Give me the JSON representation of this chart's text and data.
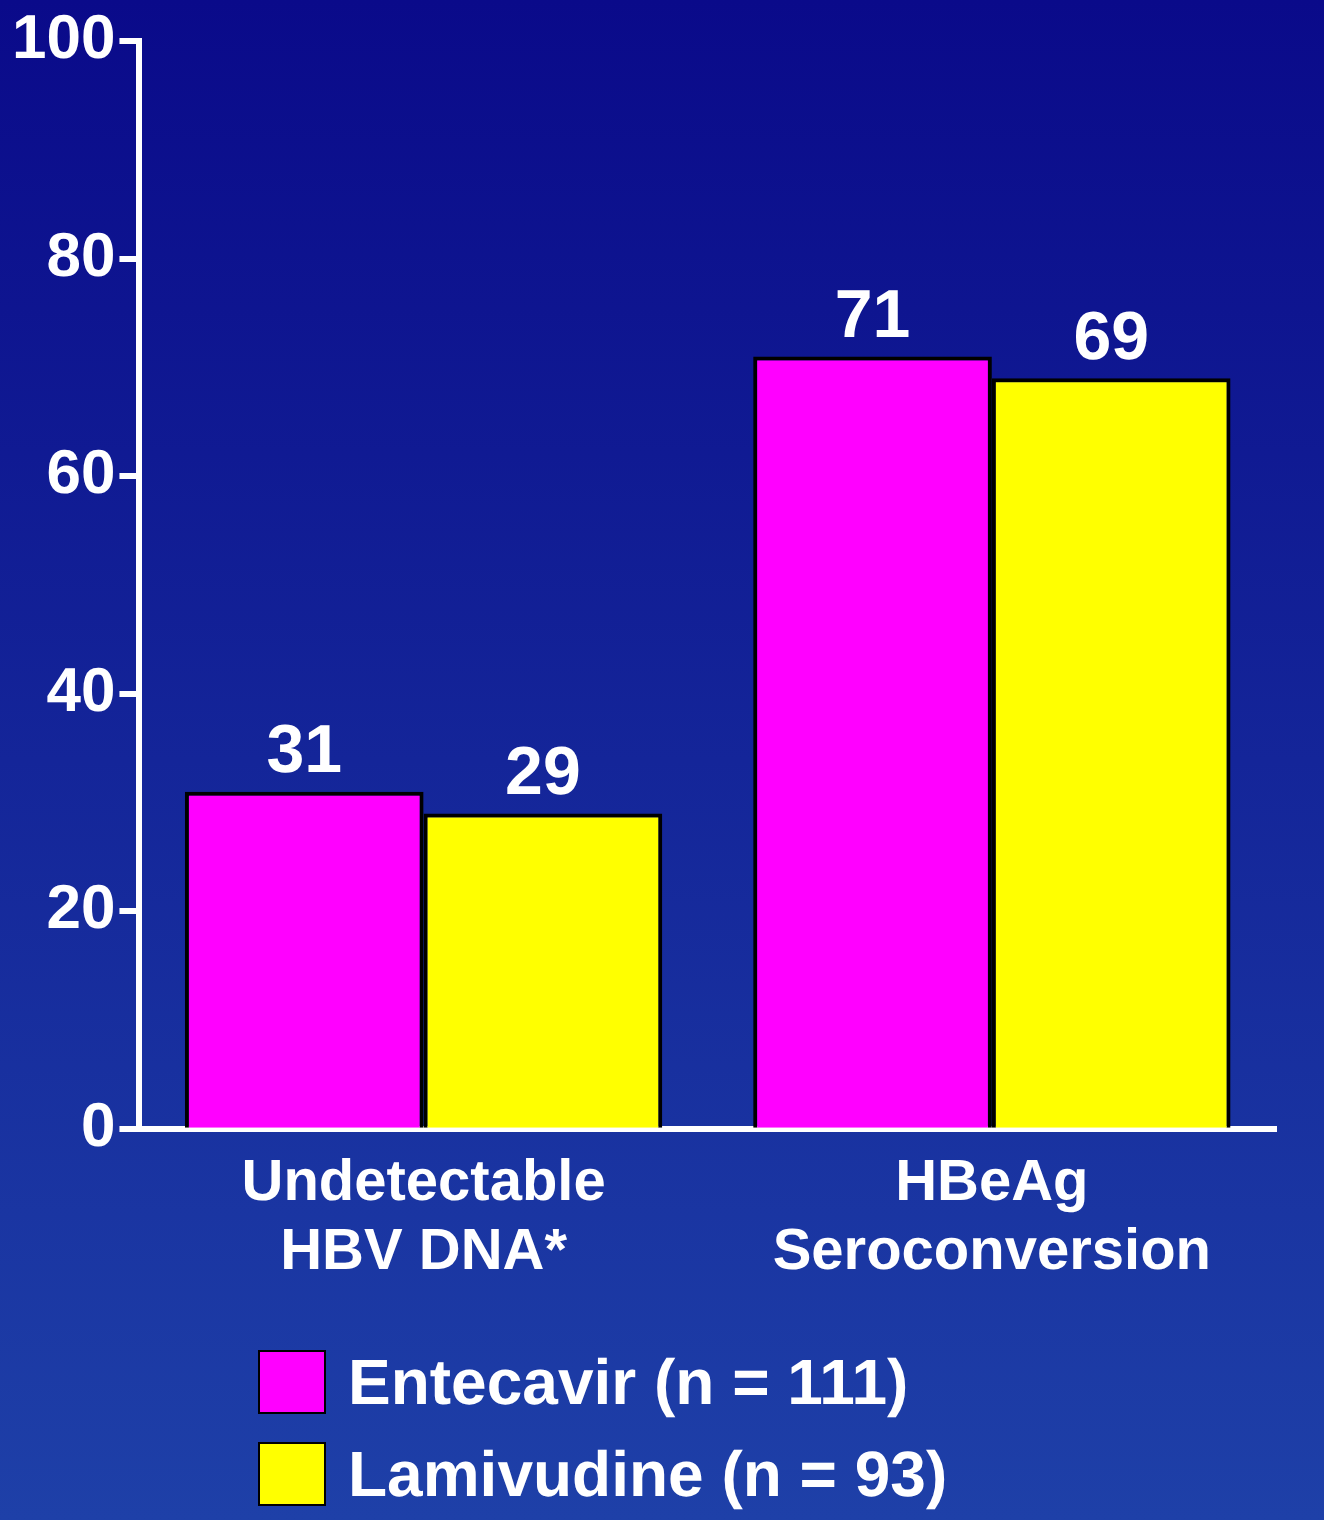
{
  "chart_data": {
    "type": "bar",
    "categories": [
      "Undetectable\nHBV DNA*",
      "HBeAg\nSeroconversion"
    ],
    "series": [
      {
        "name": "Entecavir (n = 111)",
        "color": "#ff00ff",
        "values": [
          31,
          71
        ]
      },
      {
        "name": "Lamivudine (n = 93)",
        "color": "#ffff00",
        "values": [
          29,
          69
        ]
      }
    ],
    "ylim": [
      0,
      100
    ],
    "yticks": [
      0,
      20,
      40,
      60,
      80,
      100
    ],
    "grid": false,
    "legend": "bottom",
    "data_labels": true
  }
}
